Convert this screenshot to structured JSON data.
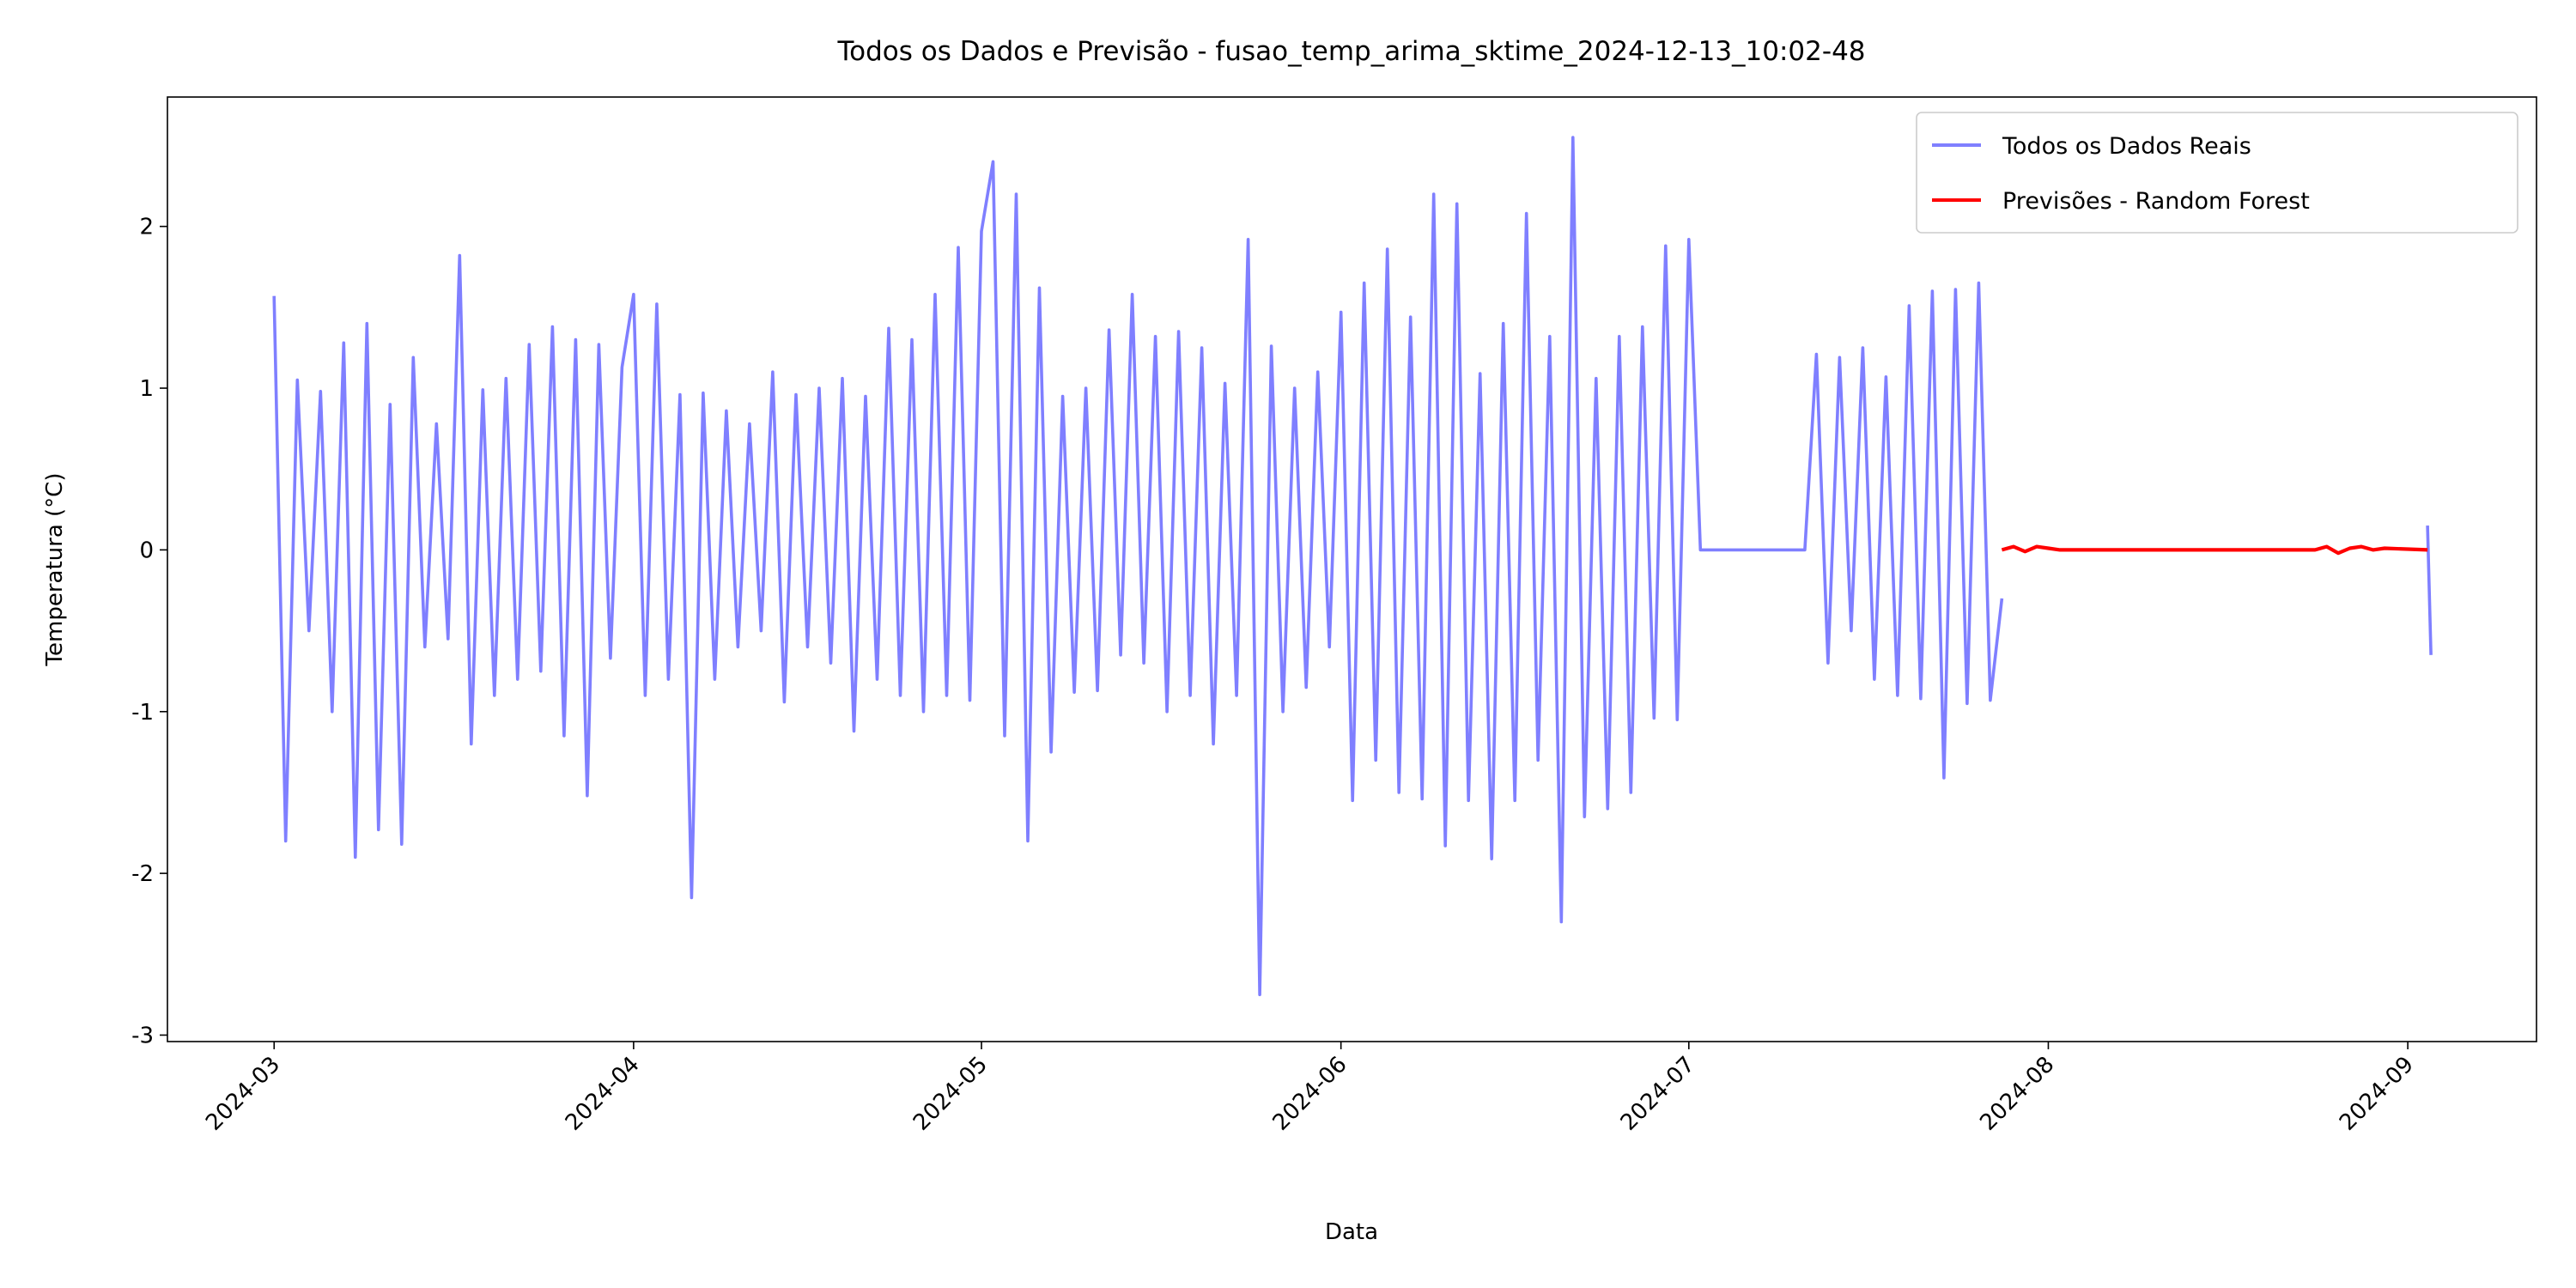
{
  "chart_data": {
    "type": "line",
    "title": "Todos os Dados e Previsão - fusao_temp_arima_sktime_2024-12-13_10:02-48",
    "xlabel": "Data",
    "ylabel": "Temperatura (°C)",
    "xlim": [
      -9.2,
      195.1
    ],
    "ylim": [
      -3.04,
      2.8
    ],
    "xticks": [
      {
        "value": 0,
        "label": "2024-03"
      },
      {
        "value": 31,
        "label": "2024-04"
      },
      {
        "value": 61,
        "label": "2024-05"
      },
      {
        "value": 92,
        "label": "2024-06"
      },
      {
        "value": 122,
        "label": "2024-07"
      },
      {
        "value": 153,
        "label": "2024-08"
      },
      {
        "value": 184,
        "label": "2024-09"
      }
    ],
    "yticks": [
      -3,
      -2,
      -1,
      0,
      1,
      2
    ],
    "legend": "upper right",
    "series": [
      {
        "name": "Todos os Dados Reais",
        "color": "#7f7fff",
        "x": [
          0,
          1,
          2,
          3,
          4,
          5,
          6,
          7,
          8,
          9,
          10,
          11,
          12,
          13,
          14,
          15,
          16,
          17,
          18,
          19,
          20,
          21,
          22,
          23,
          24,
          25,
          26,
          27,
          28,
          29,
          30,
          31,
          32,
          33,
          34,
          35,
          36,
          37,
          38,
          39,
          40,
          41,
          42,
          43,
          44,
          45,
          46,
          47,
          48,
          49,
          50,
          51,
          52,
          53,
          54,
          55,
          56,
          57,
          58,
          59,
          60,
          61,
          62,
          63,
          64,
          65,
          66,
          67,
          68,
          69,
          70,
          71,
          72,
          73,
          74,
          75,
          76,
          77,
          78,
          79,
          80,
          81,
          82,
          83,
          84,
          85,
          86,
          87,
          88,
          89,
          90,
          91,
          92,
          93,
          94,
          95,
          96,
          97,
          98,
          99,
          100,
          101,
          102,
          103,
          104,
          105,
          106,
          107,
          108,
          109,
          110,
          111,
          112,
          113,
          114,
          115,
          116,
          117,
          118,
          119,
          120,
          121,
          122,
          123,
          132,
          133,
          134,
          135,
          136,
          137,
          138,
          139,
          140,
          141,
          142,
          143,
          144,
          145,
          146,
          147,
          148,
          149,
          160,
          185.7,
          186
        ],
        "values": [
          1.57,
          -1.8,
          1.05,
          -0.5,
          0.98,
          -1.0,
          1.28,
          -1.9,
          1.4,
          -1.73,
          0.9,
          -1.82,
          1.19,
          -0.6,
          0.78,
          -0.55,
          1.82,
          -1.2,
          0.99,
          -0.9,
          1.06,
          -0.8,
          1.27,
          -0.75,
          1.38,
          -1.15,
          1.3,
          -1.52,
          1.27,
          -0.67,
          1.13,
          1.58,
          -0.9,
          1.52,
          -0.8,
          0.96,
          -2.15,
          0.97,
          -0.8,
          0.86,
          -0.6,
          0.78,
          -0.5,
          1.1,
          -0.94,
          0.96,
          -0.6,
          1.0,
          -0.7,
          1.06,
          -1.12,
          0.95,
          -0.8,
          1.37,
          -0.9,
          1.3,
          -1.0,
          1.58,
          -0.9,
          1.87,
          -0.93,
          1.97,
          2.4,
          -1.15,
          2.2,
          -1.8,
          1.62,
          -1.25,
          0.95,
          -0.88,
          1.0,
          -0.87,
          1.36,
          -0.65,
          1.58,
          -0.7,
          1.32,
          -1.0,
          1.35,
          -0.9,
          1.25,
          -1.2,
          1.03,
          -0.9,
          1.92,
          -2.75,
          1.26,
          -1.0,
          1.0,
          -0.85,
          1.1,
          -0.6,
          1.47,
          -1.55,
          1.65,
          -1.3,
          1.86,
          -1.5,
          1.44,
          -1.54,
          2.2,
          -1.83,
          2.14,
          -1.55,
          1.09,
          -1.91,
          1.4,
          -1.55,
          2.08,
          -1.3,
          1.32,
          -2.3,
          2.55,
          -1.65,
          1.06,
          -1.6,
          1.32,
          -1.5,
          1.38,
          -1.04,
          1.88,
          -1.05,
          1.92,
          0,
          0,
          1.21,
          -0.7,
          1.19,
          -0.5,
          1.25,
          -0.8,
          1.07,
          -0.9,
          1.51,
          -0.92,
          1.6,
          -1.41,
          1.61,
          -0.95,
          1.65,
          -0.93,
          -0.3,
          null,
          0.15,
          -0.65
        ]
      },
      {
        "name": "Previsões - Random Forest",
        "color": "#ff0000",
        "x": [
          149,
          150,
          151,
          152,
          153,
          154,
          176,
          177,
          178,
          179,
          180,
          181,
          182,
          185.7
        ],
        "values": [
          0.0,
          0.02,
          -0.01,
          0.02,
          0.01,
          0.0,
          0.0,
          0.02,
          -0.02,
          0.01,
          0.02,
          0.0,
          0.01,
          0.0
        ]
      }
    ]
  }
}
